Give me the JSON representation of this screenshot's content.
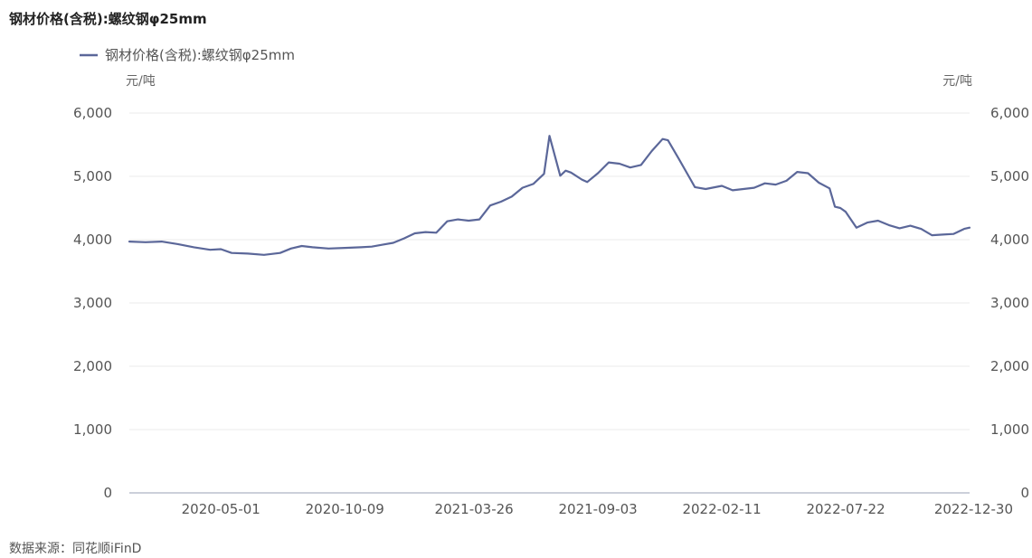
{
  "title": "钢材价格(含税):螺纹钢φ25mm",
  "source": "数据来源：同花顺iFinD",
  "chart_data": {
    "type": "line",
    "title": "钢材价格(含税):螺纹钢φ25mm",
    "legend": {
      "position": "top-left",
      "entries": [
        "钢材价格(含税):螺纹钢φ25mm"
      ]
    },
    "ylabel_left": "元/吨",
    "ylabel_right": "元/吨",
    "ylim": [
      0,
      6000
    ],
    "yticks": [
      0,
      1000,
      2000,
      3000,
      4000,
      5000,
      6000
    ],
    "ytick_labels": [
      "0",
      "1,000",
      "2,000",
      "3,000",
      "4,000",
      "5,000",
      "6,000"
    ],
    "x_tick_labels": [
      "2020-05-01",
      "2020-10-09",
      "2021-03-26",
      "2021-09-03",
      "2022-02-11",
      "2022-07-22",
      "2022-12-30"
    ],
    "grid": true,
    "line_color": "#5b6799",
    "series": [
      {
        "name": "钢材价格(含税):螺纹钢φ25mm",
        "points": [
          [
            "2020-01-03",
            3970
          ],
          [
            "2020-01-24",
            3960
          ],
          [
            "2020-02-14",
            3970
          ],
          [
            "2020-03-06",
            3930
          ],
          [
            "2020-03-27",
            3880
          ],
          [
            "2020-04-17",
            3840
          ],
          [
            "2020-05-01",
            3850
          ],
          [
            "2020-05-15",
            3790
          ],
          [
            "2020-06-05",
            3780
          ],
          [
            "2020-06-26",
            3760
          ],
          [
            "2020-07-17",
            3790
          ],
          [
            "2020-07-31",
            3860
          ],
          [
            "2020-08-14",
            3900
          ],
          [
            "2020-08-28",
            3880
          ],
          [
            "2020-09-18",
            3860
          ],
          [
            "2020-10-09",
            3870
          ],
          [
            "2020-10-30",
            3880
          ],
          [
            "2020-11-13",
            3890
          ],
          [
            "2020-11-27",
            3920
          ],
          [
            "2020-12-11",
            3950
          ],
          [
            "2020-12-25",
            4020
          ],
          [
            "2021-01-08",
            4100
          ],
          [
            "2021-01-22",
            4120
          ],
          [
            "2021-02-05",
            4110
          ],
          [
            "2021-02-19",
            4290
          ],
          [
            "2021-03-05",
            4320
          ],
          [
            "2021-03-19",
            4300
          ],
          [
            "2021-04-02",
            4320
          ],
          [
            "2021-04-16",
            4540
          ],
          [
            "2021-04-30",
            4600
          ],
          [
            "2021-05-14",
            4680
          ],
          [
            "2021-05-28",
            4820
          ],
          [
            "2021-06-11",
            4880
          ],
          [
            "2021-06-25",
            5040
          ],
          [
            "2021-07-02",
            5640
          ],
          [
            "2021-07-16",
            5010
          ],
          [
            "2021-07-23",
            5090
          ],
          [
            "2021-07-30",
            5060
          ],
          [
            "2021-08-13",
            4950
          ],
          [
            "2021-08-20",
            4910
          ],
          [
            "2021-09-03",
            5050
          ],
          [
            "2021-09-17",
            5220
          ],
          [
            "2021-10-01",
            5200
          ],
          [
            "2021-10-15",
            5140
          ],
          [
            "2021-10-29",
            5180
          ],
          [
            "2021-11-12",
            5400
          ],
          [
            "2021-11-26",
            5590
          ],
          [
            "2021-12-03",
            5570
          ],
          [
            "2021-12-17",
            5280
          ],
          [
            "2022-01-07",
            4830
          ],
          [
            "2022-01-21",
            4800
          ],
          [
            "2022-02-11",
            4850
          ],
          [
            "2022-02-25",
            4780
          ],
          [
            "2022-03-11",
            4800
          ],
          [
            "2022-03-25",
            4820
          ],
          [
            "2022-04-08",
            4890
          ],
          [
            "2022-04-22",
            4870
          ],
          [
            "2022-05-06",
            4930
          ],
          [
            "2022-05-20",
            5070
          ],
          [
            "2022-06-03",
            5050
          ],
          [
            "2022-06-17",
            4900
          ],
          [
            "2022-07-01",
            4810
          ],
          [
            "2022-07-08",
            4520
          ],
          [
            "2022-07-15",
            4500
          ],
          [
            "2022-07-22",
            4440
          ],
          [
            "2022-08-05",
            4190
          ],
          [
            "2022-08-19",
            4270
          ],
          [
            "2022-09-02",
            4300
          ],
          [
            "2022-09-16",
            4230
          ],
          [
            "2022-09-30",
            4180
          ],
          [
            "2022-10-14",
            4220
          ],
          [
            "2022-10-28",
            4170
          ],
          [
            "2022-11-11",
            4070
          ],
          [
            "2022-11-25",
            4080
          ],
          [
            "2022-12-09",
            4090
          ],
          [
            "2022-12-23",
            4170
          ],
          [
            "2022-12-30",
            4190
          ]
        ]
      }
    ]
  }
}
